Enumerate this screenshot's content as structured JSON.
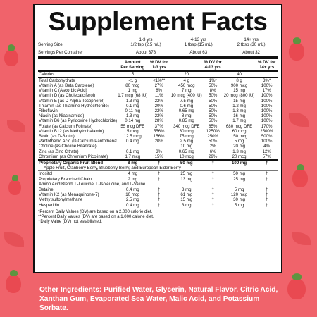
{
  "title": "Supplement Facts",
  "serving": {
    "size_label": "Serving Size",
    "per_container_label": "Servings Per Container",
    "columns": [
      {
        "age": "1-3 yrs",
        "size": "1/2 tsp (2.5 mL)",
        "per_container": "About 378"
      },
      {
        "age": "4-13 yrs",
        "size": "1 tbsp (15 mL)",
        "per_container": "About 63"
      },
      {
        "age": "14+ yrs",
        "size": "2 tbsp (30 mL)",
        "per_container": "About 32"
      }
    ]
  },
  "table_header": {
    "amount": "Amount",
    "per_serving": "Per Serving",
    "dv1": "% DV for",
    "age1": "1-3 yrs",
    "dv2": "% DV for",
    "age2": "4-13 yrs",
    "dv3": "% DV for",
    "age3": "14+ yrs"
  },
  "calories": {
    "name": "Calories",
    "v1": "5",
    "d1": "",
    "v2": "20",
    "d2": "",
    "v3": "40",
    "d3": ""
  },
  "nutrients": [
    {
      "name": "Total Carbohydrate",
      "v1": "<1 g",
      "d1": "<1%**",
      "v2": "4 g",
      "d2": "1%*",
      "v3": "8 g",
      "d3": "3%*"
    },
    {
      "name": "Vitamin A (as Beta Carotene)",
      "v1": "80 mcg",
      "d1": "27%",
      "v2": "450 mcg",
      "d2": "50%",
      "v3": "900 mcg",
      "d3": "100%"
    },
    {
      "name": "Vitamin C (Ascorbic Acid)",
      "v1": "1 mg",
      "d1": "8%",
      "v2": "7 mg",
      "d2": "8%",
      "v3": "15 mg",
      "d3": "17%"
    },
    {
      "name": "Vitamin D (as Cholecalciferol)",
      "v1": "1.7 mcg (68 IU)",
      "d1": "11%",
      "v2": "10 mcg (400 IU)",
      "d2": "50%",
      "v3": "20 mcg (800 IU)",
      "d3": "100%"
    },
    {
      "name": "Vitamin E (as D-Alpha Tocopherol)",
      "v1": "1.3 mg",
      "d1": "22%",
      "v2": "7.5 mg",
      "d2": "50%",
      "v3": "15 mg",
      "d3": "100%"
    },
    {
      "name": "Thiamin (as Thiamine Hydrochloride)",
      "v1": "0.1 mg",
      "d1": "20%",
      "v2": "0.6 mg",
      "d2": "50%",
      "v3": "1.2 mg",
      "d3": "100%"
    },
    {
      "name": "Riboflavin",
      "v1": "0.11 mg",
      "d1": "22%",
      "v2": "0.65 mg",
      "d2": "50%",
      "v3": "1.3 mg",
      "d3": "100%"
    },
    {
      "name": "Niacin (as Niacinamide)",
      "v1": "1.3 mg",
      "d1": "22%",
      "v2": "8 mg",
      "d2": "50%",
      "v3": "16 mg",
      "d3": "100%"
    },
    {
      "name": "Vitamin B6 (as Pyridoxine Hydrochloride)",
      "v1": "0.14 mg",
      "d1": "28%",
      "v2": "0.85 mg",
      "d2": "50%",
      "v3": "1.7 mg",
      "d3": "100%"
    },
    {
      "name": "Folate (as Calcium Folinate)",
      "v1": "55 mcg DFE",
      "d1": "37%",
      "v2": "340 mcg DFE",
      "d2": "85%",
      "v3": "680 mcg DFE",
      "d3": "170%"
    },
    {
      "name": "Vitamin B12 (as Methylcobalamin)",
      "v1": "5 mcg",
      "d1": "556%",
      "v2": "30 mcg",
      "d2": "1250%",
      "v3": "60 mcg",
      "d3": "2500%"
    },
    {
      "name": "Biotin (as D-Biotin)",
      "v1": "12.5 mcg",
      "d1": "156%",
      "v2": "75 mcg",
      "d2": "250%",
      "v3": "150 mcg",
      "d3": "500%"
    },
    {
      "name": "Pantothenic Acid (D-Calcium Pantothenate)",
      "v1": "0.4 mg",
      "d1": "20%",
      "v2": "2.5 mg",
      "d2": "50%",
      "v3": "5 mg",
      "d3": "100%"
    },
    {
      "name": "Choline (as Choline Bitartrate)",
      "v1": "",
      "d1": "",
      "v2": "10 mg",
      "d2": "2%",
      "v3": "20 mg",
      "d3": "4%"
    },
    {
      "name": "Zinc (as Zinc Citrate)",
      "v1": "0.1 mg",
      "d1": "3%",
      "v2": "0.65 mg",
      "d2": "6%",
      "v3": "1.3 mg",
      "d3": "12%"
    },
    {
      "name": "Chromium (as Chromium Picolinate)",
      "v1": "1.7 mcg",
      "d1": "15%",
      "v2": "10 mcg",
      "d2": "29%",
      "v3": "20 mcg",
      "d3": "57%"
    }
  ],
  "blend": {
    "name": "Proprietary Organic Fruit Blend",
    "v1": "8 mg",
    "d1": "†",
    "v2": "50 mg",
    "d2": "†",
    "v3": "100 mg",
    "d3": "†",
    "ingredients": "Apple Fruit, Cranberry Berry, Blueberry Berry, and European Elder Berry"
  },
  "extras": [
    {
      "name": "Inositol",
      "v1": "4 mg",
      "d1": "†",
      "v2": "25 mg",
      "d2": "†",
      "v3": "50 mg",
      "d3": "†"
    },
    {
      "name": "Proprietary Branched Chain",
      "v1": "2 mg",
      "d1": "†",
      "v2": "13 mg",
      "d2": "†",
      "v3": "25 mg",
      "d3": "†"
    },
    {
      "name": "Amino Acid Blend: L-Leucine, L-Isoleucine, and L-Valine",
      "v1": "",
      "d1": "",
      "v2": "",
      "d2": "",
      "v3": "",
      "d3": "",
      "span": true
    },
    {
      "name": "Betaine",
      "v1": "0.4 mg",
      "d1": "†",
      "v2": "3 mg",
      "d2": "†",
      "v3": "5 mg",
      "d3": "†"
    },
    {
      "name": "Vitamin K2 (as Menaquinone-7)",
      "v1": "10 mcg",
      "d1": "†",
      "v2": "61 mg",
      "d2": "†",
      "v3": "120 mcg",
      "d3": "†"
    },
    {
      "name": "Methylsulfonylmethane",
      "v1": "2.5 mg",
      "d1": "†",
      "v2": "15 mg",
      "d2": "†",
      "v3": "30 mg",
      "d3": "†"
    },
    {
      "name": "Hesperidin",
      "v1": "0.4 mg",
      "d1": "†",
      "v2": "3 mg",
      "d2": "†",
      "v3": "5 mg",
      "d3": "†"
    }
  ],
  "footnotes": [
    "*Percent Daily Values (DV) are based on a 2,000 calorie diet.",
    "**Percent Daily Values (DV) are based on a 1,000 calorie diet.",
    "†Daily Value (DV) not established."
  ],
  "other_ingredients": "Other Ingredients: Purified Water, Glycerin, Natural Flavor, Citric Acid, Xanthan Gum, Evaporated Sea Water, Malic Acid, and Potassium Sorbate.",
  "colors": {
    "background": "#f0636b",
    "panel": "#ffffff",
    "text": "#111111"
  }
}
